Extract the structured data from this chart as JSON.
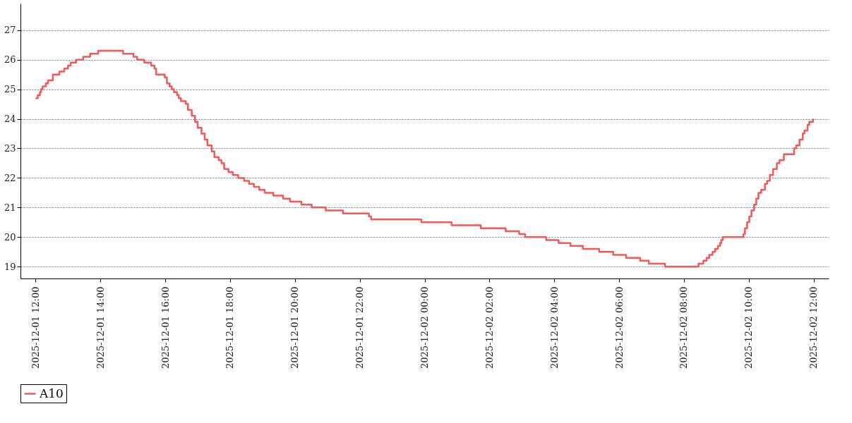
{
  "chart_data": {
    "type": "step",
    "series": [
      {
        "name": "A10",
        "color": "#f05a5a",
        "x": [
          "2025-12-01T12:00",
          "2025-12-01T12:04",
          "2025-12-01T12:08",
          "2025-12-01T12:10",
          "2025-12-01T12:13",
          "2025-12-01T12:19",
          "2025-12-01T12:23",
          "2025-12-01T12:32",
          "2025-12-01T12:44",
          "2025-12-01T12:53",
          "2025-12-01T13:00",
          "2025-12-01T13:05",
          "2025-12-01T13:15",
          "2025-12-01T13:28",
          "2025-12-01T13:41",
          "2025-12-01T13:56",
          "2025-12-01T14:42",
          "2025-12-01T15:01",
          "2025-12-01T15:08",
          "2025-12-01T15:21",
          "2025-12-01T15:34",
          "2025-12-01T15:40",
          "2025-12-01T15:43",
          "2025-12-01T15:59",
          "2025-12-01T16:03",
          "2025-12-01T16:08",
          "2025-12-01T16:12",
          "2025-12-01T16:16",
          "2025-12-01T16:22",
          "2025-12-01T16:25",
          "2025-12-01T16:29",
          "2025-12-01T16:38",
          "2025-12-01T16:42",
          "2025-12-01T16:49",
          "2025-12-01T16:55",
          "2025-12-01T17:00",
          "2025-12-01T17:07",
          "2025-12-01T17:13",
          "2025-12-01T17:18",
          "2025-12-01T17:26",
          "2025-12-01T17:31",
          "2025-12-01T17:39",
          "2025-12-01T17:44",
          "2025-12-01T17:49",
          "2025-12-01T17:57",
          "2025-12-01T18:05",
          "2025-12-01T18:15",
          "2025-12-01T18:26",
          "2025-12-01T18:35",
          "2025-12-01T18:44",
          "2025-12-01T18:54",
          "2025-12-01T19:04",
          "2025-12-01T19:20",
          "2025-12-01T19:38",
          "2025-12-01T19:51",
          "2025-12-01T20:12",
          "2025-12-01T20:31",
          "2025-12-01T20:57",
          "2025-12-01T21:29",
          "2025-12-01T22:17",
          "2025-12-01T22:21",
          "2025-12-01T23:54",
          "2025-12-02T00:50",
          "2025-12-02T01:44",
          "2025-12-02T02:30",
          "2025-12-02T02:55",
          "2025-12-02T03:06",
          "2025-12-02T03:45",
          "2025-12-02T04:08",
          "2025-12-02T04:30",
          "2025-12-02T04:53",
          "2025-12-02T05:23",
          "2025-12-02T05:49",
          "2025-12-02T06:13",
          "2025-12-02T06:39",
          "2025-12-02T06:55",
          "2025-12-02T07:25",
          "2025-12-02T08:27",
          "2025-12-02T08:36",
          "2025-12-02T08:42",
          "2025-12-02T08:47",
          "2025-12-02T08:53",
          "2025-12-02T08:58",
          "2025-12-02T09:03",
          "2025-12-02T09:07",
          "2025-12-02T09:09",
          "2025-12-02T09:12",
          "2025-12-02T09:50",
          "2025-12-02T09:53",
          "2025-12-02T09:57",
          "2025-12-02T10:01",
          "2025-12-02T10:05",
          "2025-12-02T10:10",
          "2025-12-02T10:14",
          "2025-12-02T10:18",
          "2025-12-02T10:23",
          "2025-12-02T10:30",
          "2025-12-02T10:34",
          "2025-12-02T10:39",
          "2025-12-02T10:45",
          "2025-12-02T10:52",
          "2025-12-02T10:57",
          "2025-12-02T11:05",
          "2025-12-02T11:24",
          "2025-12-02T11:28",
          "2025-12-02T11:34",
          "2025-12-02T11:40",
          "2025-12-02T11:43",
          "2025-12-02T11:49",
          "2025-12-02T11:52",
          "2025-12-02T11:59"
        ],
        "values": [
          24.7,
          24.8,
          24.9,
          25.0,
          25.1,
          25.2,
          25.3,
          25.5,
          25.6,
          25.7,
          25.8,
          25.9,
          26.0,
          26.1,
          26.2,
          26.3,
          26.2,
          26.1,
          26.0,
          25.9,
          25.8,
          25.7,
          25.5,
          25.4,
          25.2,
          25.1,
          25.0,
          24.9,
          24.8,
          24.7,
          24.6,
          24.5,
          24.3,
          24.1,
          23.9,
          23.7,
          23.5,
          23.3,
          23.1,
          22.9,
          22.7,
          22.6,
          22.5,
          22.3,
          22.2,
          22.1,
          22.0,
          21.9,
          21.8,
          21.7,
          21.6,
          21.5,
          21.4,
          21.3,
          21.2,
          21.1,
          21.0,
          20.9,
          20.8,
          20.7,
          20.6,
          20.5,
          20.4,
          20.3,
          20.2,
          20.1,
          20.0,
          19.9,
          19.8,
          19.7,
          19.6,
          19.5,
          19.4,
          19.3,
          19.2,
          19.1,
          19.0,
          19.1,
          19.2,
          19.3,
          19.4,
          19.5,
          19.6,
          19.7,
          19.8,
          19.9,
          20.0,
          20.1,
          20.3,
          20.5,
          20.7,
          20.9,
          21.1,
          21.3,
          21.5,
          21.6,
          21.8,
          21.9,
          22.1,
          22.3,
          22.5,
          22.6,
          22.8,
          23.0,
          23.1,
          23.3,
          23.5,
          23.6,
          23.8,
          23.9,
          24.0
        ]
      }
    ],
    "xlim": [
      "2025-12-01T11:32",
      "2025-12-02T12:28"
    ],
    "xticks": [
      {
        "value": "2025-12-01T12:00",
        "label": "2025-12-01  12:00"
      },
      {
        "value": "2025-12-01T14:00",
        "label": "2025-12-01  14:00"
      },
      {
        "value": "2025-12-01T16:00",
        "label": "2025-12-01  16:00"
      },
      {
        "value": "2025-12-01T18:00",
        "label": "2025-12-01  18:00"
      },
      {
        "value": "2025-12-01T20:00",
        "label": "2025-12-01  20:00"
      },
      {
        "value": "2025-12-01T22:00",
        "label": "2025-12-01  22:00"
      },
      {
        "value": "2025-12-02T00:00",
        "label": "2025-12-02  00:00"
      },
      {
        "value": "2025-12-02T02:00",
        "label": "2025-12-02  02:00"
      },
      {
        "value": "2025-12-02T04:00",
        "label": "2025-12-02  04:00"
      },
      {
        "value": "2025-12-02T06:00",
        "label": "2025-12-02  06:00"
      },
      {
        "value": "2025-12-02T08:00",
        "label": "2025-12-02  08:00"
      },
      {
        "value": "2025-12-02T10:00",
        "label": "2025-12-02  10:00"
      },
      {
        "value": "2025-12-02T12:00",
        "label": "2025-12-02  12:00"
      }
    ],
    "ylim": [
      18.6,
      27.9
    ],
    "yticks": [
      19,
      20,
      21,
      22,
      23,
      24,
      25,
      26,
      27
    ],
    "grid": "y",
    "legend": "bottom",
    "line_style": "solid"
  }
}
